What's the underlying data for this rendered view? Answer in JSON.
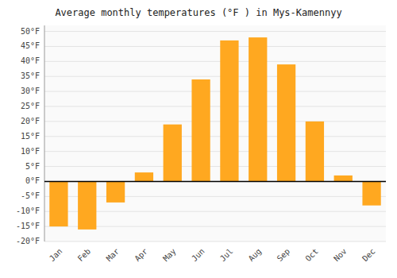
{
  "chart_data": {
    "type": "bar",
    "title": "Average monthly temperatures (°F ) in Mys-Kamennyy",
    "categories": [
      "Jan",
      "Feb",
      "Mar",
      "Apr",
      "May",
      "Jun",
      "Jul",
      "Aug",
      "Sep",
      "Oct",
      "Nov",
      "Dec"
    ],
    "values": [
      -15,
      -16,
      -7,
      3,
      19,
      34,
      47,
      48,
      39,
      20,
      2,
      -8
    ],
    "color": "#FFA820",
    "ylim": [
      -20,
      52
    ],
    "yticks": [
      {
        "value": -20,
        "label": "-20°F"
      },
      {
        "value": -15,
        "label": "-15°F"
      },
      {
        "value": -10,
        "label": "-10°F"
      },
      {
        "value": -5,
        "label": "-5°F"
      },
      {
        "value": 0,
        "label": "0°F"
      },
      {
        "value": 5,
        "label": "5°F"
      },
      {
        "value": 10,
        "label": "10°F"
      },
      {
        "value": 15,
        "label": "15°F"
      },
      {
        "value": 20,
        "label": "20°F"
      },
      {
        "value": 25,
        "label": "25°F"
      },
      {
        "value": 30,
        "label": "30°F"
      },
      {
        "value": 35,
        "label": "35°F"
      },
      {
        "value": 40,
        "label": "40°F"
      },
      {
        "value": 45,
        "label": "45°F"
      },
      {
        "value": 50,
        "label": "50°F"
      }
    ],
    "grid": true
  }
}
